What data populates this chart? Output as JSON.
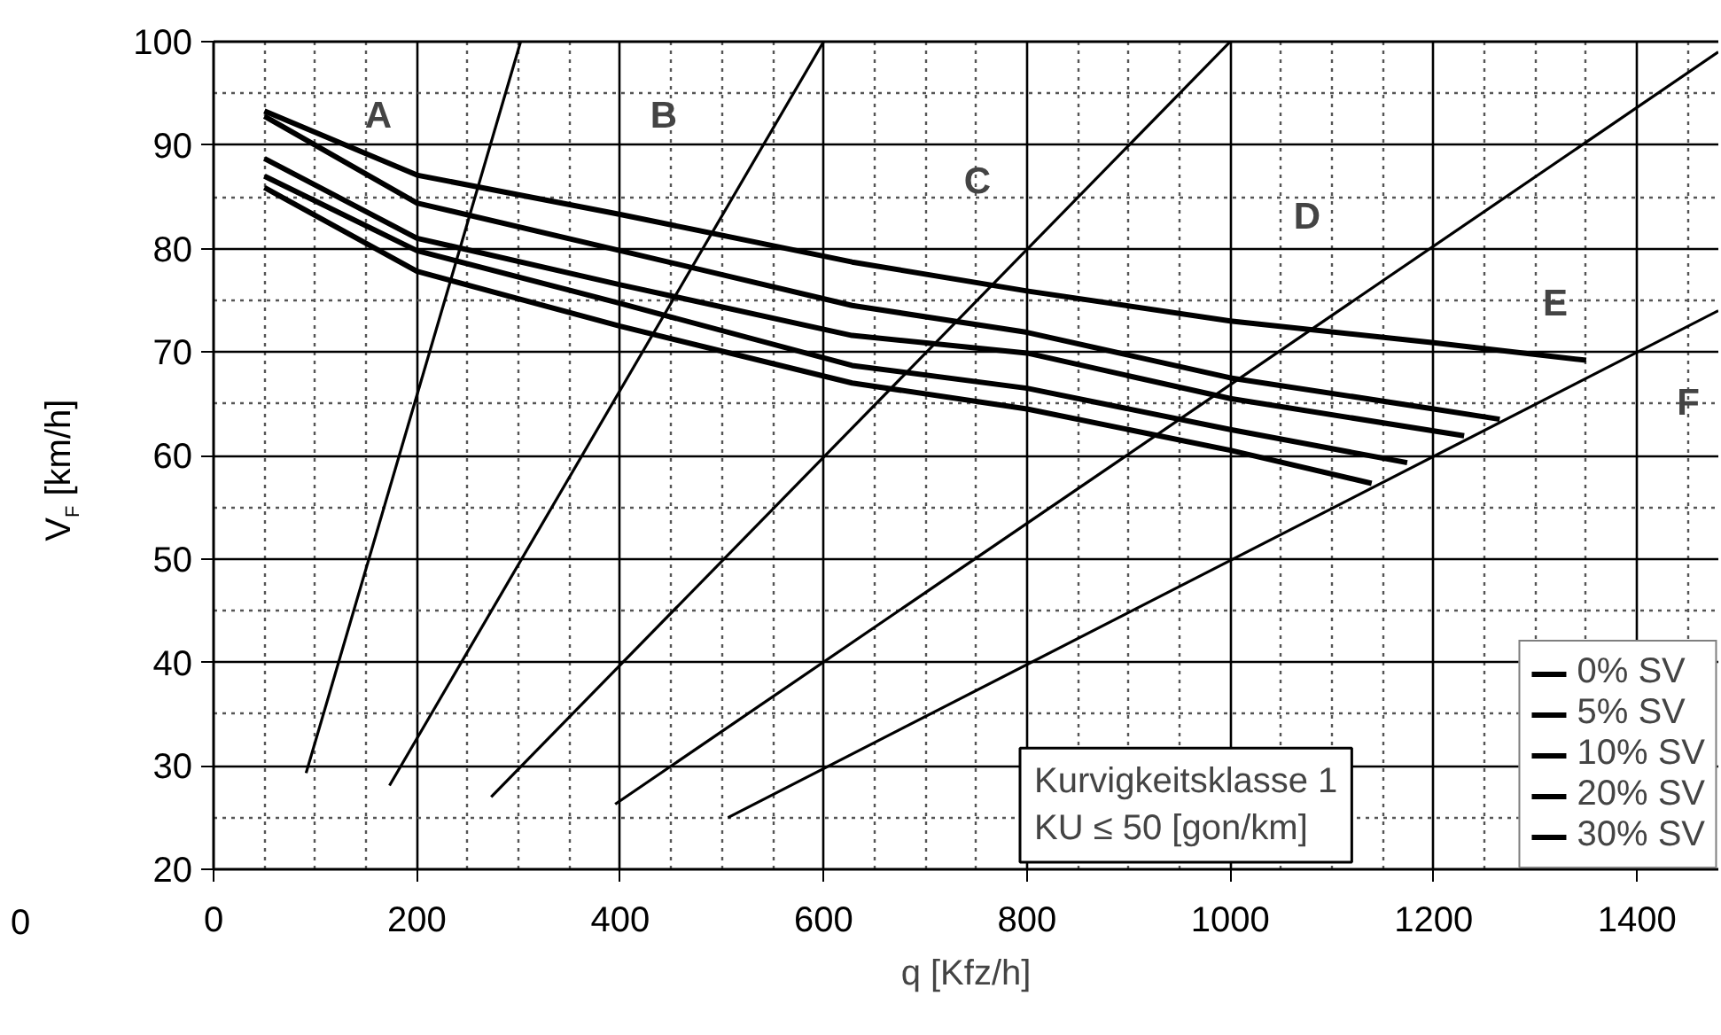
{
  "chart_data": {
    "type": "line",
    "xlabel": "q [Kfz/h]",
    "ylabel": "V$_{F}$ [km/h]",
    "xlim": [
      0,
      1480
    ],
    "ylim": [
      20,
      100
    ],
    "xticks": [
      0,
      200,
      400,
      600,
      800,
      1000,
      1200,
      1400
    ],
    "yticks": [
      20,
      30,
      40,
      50,
      60,
      70,
      80,
      90,
      100
    ],
    "grid": true,
    "legend": "bottom right",
    "line_style": "solid",
    "series": [
      {
        "name": "0% SV",
        "color": "#000000",
        "x": [
          50,
          200,
          400,
          628,
          800,
          1000,
          1200,
          1350
        ],
        "values": [
          93.3,
          87.1,
          83.3,
          78.7,
          75.9,
          73.0,
          70.9,
          69.2
        ]
      },
      {
        "name": "5% SV",
        "color": "#000000",
        "x": [
          50,
          200,
          400,
          628,
          800,
          1000,
          1200,
          1265
        ],
        "values": [
          92.8,
          84.4,
          79.8,
          74.5,
          71.9,
          67.5,
          64.5,
          63.5
        ]
      },
      {
        "name": "10% SV",
        "color": "#000000",
        "x": [
          50,
          200,
          400,
          628,
          800,
          1000,
          1230
        ],
        "values": [
          88.7,
          81.0,
          76.5,
          71.6,
          69.9,
          65.5,
          61.9
        ]
      },
      {
        "name": "20% SV",
        "color": "#000000",
        "x": [
          50,
          200,
          400,
          628,
          800,
          1000,
          1174
        ],
        "values": [
          87.0,
          79.8,
          74.7,
          68.7,
          66.5,
          62.5,
          59.3
        ]
      },
      {
        "name": "30% SV",
        "color": "#000000",
        "x": [
          50,
          200,
          400,
          628,
          800,
          1000,
          1139
        ],
        "values": [
          85.9,
          77.8,
          72.5,
          67.0,
          64.5,
          60.5,
          57.3
        ]
      },
      {
        "color": "#000000",
        "x": [
          91,
          302
        ],
        "values": [
          29.3,
          100
        ]
      },
      {
        "color": "#000000",
        "x": [
          173,
          600
        ],
        "values": [
          28.1,
          100
        ]
      },
      {
        "color": "#000000",
        "x": [
          273,
          1000
        ],
        "values": [
          27.0,
          100
        ]
      },
      {
        "color": "#000000",
        "x": [
          395,
          1480
        ],
        "values": [
          26.3,
          99
        ]
      },
      {
        "color": "#000000",
        "x": [
          506,
          1480
        ],
        "values": [
          25.0,
          74
        ]
      }
    ],
    "annotations": [
      "A",
      "B",
      "C",
      "D",
      "E",
      "F",
      "Kurvigkeitsklasse 1\nKU ≤ 50 [gon/km]",
      "0"
    ]
  }
}
